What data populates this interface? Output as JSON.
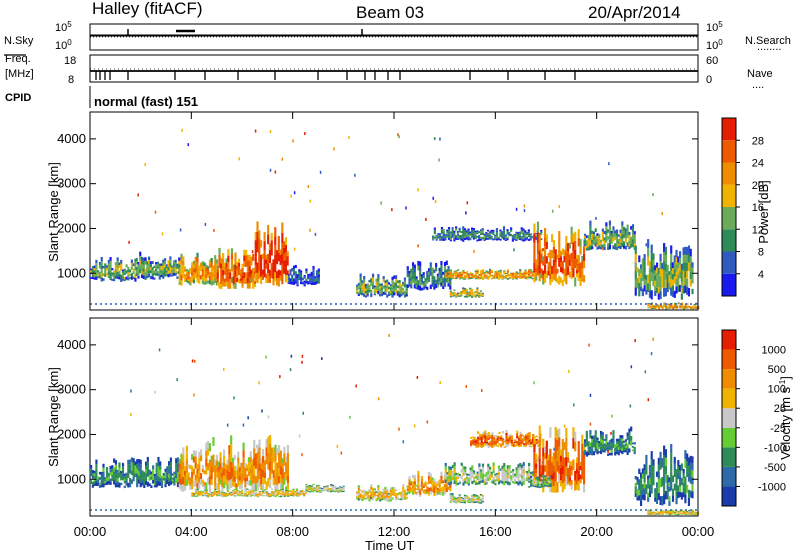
{
  "header": {
    "station": "Halley (fitACF)",
    "beam": "Beam 03",
    "date": "20/Apr/2014"
  },
  "left_labels": {
    "nsky": "N.Sky",
    "freq_line1": "Freq.",
    "freq_line2": "[MHz]",
    "cpid": "CPID"
  },
  "right_labels": {
    "nsearch": "N.Search",
    "nave": "Nave",
    "nsearch_dots": "........",
    "nave_dots": "...."
  },
  "nsky_ticks": [
    "10^5",
    "10^0"
  ],
  "nsearch_ticks": [
    "10^5",
    "10^0"
  ],
  "freq_ticks": [
    "18",
    "8"
  ],
  "nave_ticks": [
    "60",
    "0"
  ],
  "cpid_text": "normal (fast) 151",
  "chart_data": [
    {
      "type": "heatmap",
      "name": "power",
      "xlabel": "Time UT",
      "ylabel": "Slant Range [km]",
      "x_ticks": [
        "00:00",
        "04:00",
        "08:00",
        "12:00",
        "16:00",
        "20:00",
        "00:00"
      ],
      "y_ticks": [
        1000,
        2000,
        3000,
        4000
      ],
      "ylim": [
        180,
        4600
      ],
      "xlim_hours": [
        0,
        24
      ],
      "colorbar_label": "Power [dB]",
      "colorbar_ticks": [
        4,
        8,
        12,
        16,
        20,
        24,
        28
      ],
      "colorbar_colors": [
        "#1a1aee",
        "#2f5bbf",
        "#2e8b57",
        "#6aaa5a",
        "#f0b400",
        "#f08c00",
        "#ee5a00",
        "#e61e00"
      ],
      "echo_regions": [
        {
          "t_start": 0.0,
          "t_end": 1.8,
          "r_low": 800,
          "r_high": 1400,
          "level": 3
        },
        {
          "t_start": 1.8,
          "t_end": 3.5,
          "r_low": 850,
          "r_high": 1500,
          "level": 3
        },
        {
          "t_start": 3.5,
          "t_end": 5.0,
          "r_low": 700,
          "r_high": 1500,
          "level": 5
        },
        {
          "t_start": 5.0,
          "t_end": 6.5,
          "r_low": 650,
          "r_high": 1600,
          "level": 6
        },
        {
          "t_start": 6.5,
          "t_end": 7.8,
          "r_low": 700,
          "r_high": 2200,
          "level": 7
        },
        {
          "t_start": 7.8,
          "t_end": 9.0,
          "r_low": 700,
          "r_high": 1200,
          "level": 1
        },
        {
          "t_start": 10.5,
          "t_end": 12.5,
          "r_low": 450,
          "r_high": 1000,
          "level": 3
        },
        {
          "t_start": 12.5,
          "t_end": 14.2,
          "r_low": 600,
          "r_high": 1300,
          "level": 2
        },
        {
          "t_start": 14.0,
          "t_end": 17.5,
          "r_low": 850,
          "r_high": 1100,
          "level": 5
        },
        {
          "t_start": 14.2,
          "t_end": 15.5,
          "r_low": 450,
          "r_high": 700,
          "level": 4
        },
        {
          "t_start": 13.5,
          "t_end": 17.8,
          "r_low": 1700,
          "r_high": 2050,
          "level": 2
        },
        {
          "t_start": 17.5,
          "t_end": 19.5,
          "r_low": 700,
          "r_high": 2200,
          "level": 6
        },
        {
          "t_start": 19.5,
          "t_end": 21.5,
          "r_low": 1500,
          "r_high": 2200,
          "level": 3
        },
        {
          "t_start": 21.5,
          "t_end": 23.8,
          "r_low": 400,
          "r_high": 1800,
          "level": 3
        },
        {
          "t_start": 22.0,
          "t_end": 24.0,
          "r_low": 200,
          "r_high": 350,
          "level": 5
        }
      ]
    },
    {
      "type": "heatmap",
      "name": "velocity",
      "xlabel": "Time UT",
      "ylabel": "Slant Range [km]",
      "x_ticks": [
        "00:00",
        "04:00",
        "08:00",
        "12:00",
        "16:00",
        "20:00",
        "00:00"
      ],
      "y_ticks": [
        1000,
        2000,
        3000,
        4000
      ],
      "ylim": [
        180,
        4600
      ],
      "xlim_hours": [
        0,
        24
      ],
      "colorbar_label": "Velocity [m s^-1]",
      "colorbar_label_base": "Velocity [m s",
      "colorbar_label_exp": "-1",
      "colorbar_label_end": "]",
      "colorbar_ticks": [
        1000,
        500,
        100,
        25,
        -25,
        -100,
        -500,
        -1000
      ],
      "colorbar_colors": [
        "#1a3caa",
        "#2c6aa8",
        "#2e8b57",
        "#66cc33",
        "#c8c8c8",
        "#f0b400",
        "#f08c00",
        "#ee5a00",
        "#e61e00"
      ],
      "echo_regions": [
        {
          "t_start": 0.0,
          "t_end": 3.5,
          "r_low": 800,
          "r_high": 1500,
          "level": 2
        },
        {
          "t_start": 3.5,
          "t_end": 7.8,
          "r_low": 700,
          "r_high": 2000,
          "level": 6
        },
        {
          "t_start": 4.0,
          "t_end": 8.5,
          "r_low": 600,
          "r_high": 800,
          "level": 5
        },
        {
          "t_start": 8.5,
          "t_end": 10.0,
          "r_low": 700,
          "r_high": 900,
          "level": 4
        },
        {
          "t_start": 10.5,
          "t_end": 12.5,
          "r_low": 500,
          "r_high": 900,
          "level": 5
        },
        {
          "t_start": 12.5,
          "t_end": 14.2,
          "r_low": 600,
          "r_high": 1200,
          "level": 6
        },
        {
          "t_start": 14.0,
          "t_end": 17.5,
          "r_low": 850,
          "r_high": 1400,
          "level": 4
        },
        {
          "t_start": 14.2,
          "t_end": 15.5,
          "r_low": 450,
          "r_high": 700,
          "level": 4
        },
        {
          "t_start": 15.0,
          "t_end": 17.8,
          "r_low": 1700,
          "r_high": 2100,
          "level": 7
        },
        {
          "t_start": 17.5,
          "t_end": 19.5,
          "r_low": 700,
          "r_high": 2200,
          "level": 7
        },
        {
          "t_start": 17.3,
          "t_end": 18.2,
          "r_low": 800,
          "r_high": 1100,
          "level": 3
        },
        {
          "t_start": 19.5,
          "t_end": 21.5,
          "r_low": 1500,
          "r_high": 2200,
          "level": 2
        },
        {
          "t_start": 21.5,
          "t_end": 23.8,
          "r_low": 400,
          "r_high": 1800,
          "level": 2
        },
        {
          "t_start": 22.0,
          "t_end": 24.0,
          "r_low": 200,
          "r_high": 350,
          "level": 5
        }
      ]
    }
  ]
}
